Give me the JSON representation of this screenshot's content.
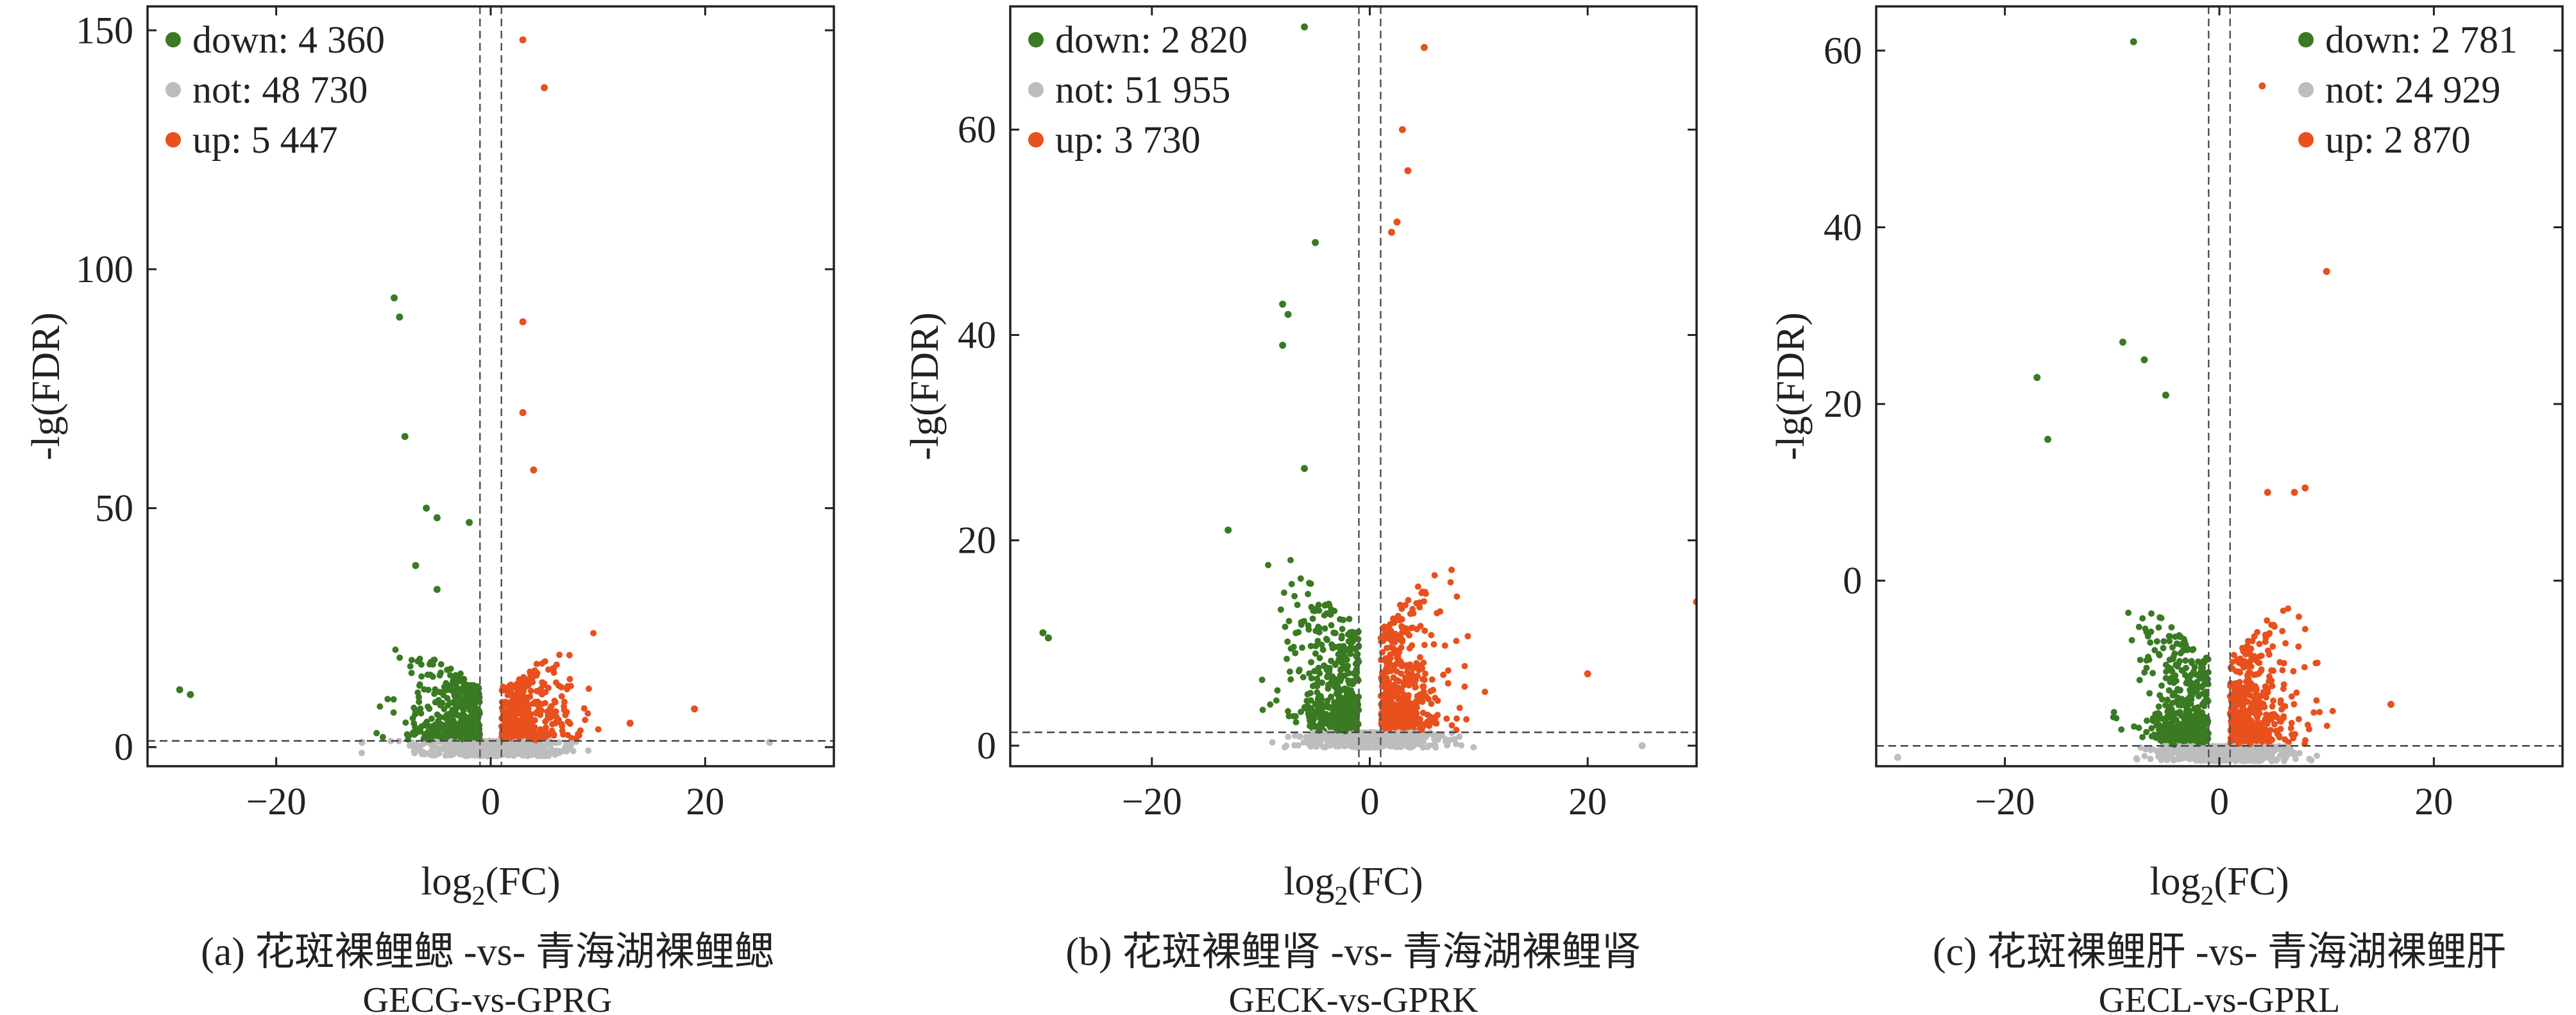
{
  "colors": {
    "down": "#3a7a22",
    "not": "#bdbdbd",
    "up": "#e8501d",
    "axis": "#222222"
  },
  "chart_data": [
    {
      "type": "scatter",
      "xlabel_main": "log",
      "xlabel_sub": "2",
      "xlabel_tail": "(FC)",
      "ylabel": "-lg(FDR)",
      "xlim": [
        -32,
        32
      ],
      "ylim": [
        -4,
        155
      ],
      "xticks": [
        -20,
        0,
        20
      ],
      "yticks": [
        0,
        50,
        100,
        150
      ],
      "thresholds": {
        "x": [
          -1,
          1
        ],
        "y": 1.3
      },
      "legend_position": "top-left",
      "legend": [
        {
          "group": "down",
          "label": "down: 4 360"
        },
        {
          "group": "not",
          "label": "not: 48 730"
        },
        {
          "group": "up",
          "label": "up: 5 447"
        }
      ],
      "highlights": [
        [
          -29,
          12,
          "down"
        ],
        [
          -28,
          11,
          "down"
        ],
        [
          -9,
          94,
          "down"
        ],
        [
          -8.5,
          90,
          "down"
        ],
        [
          -8,
          65,
          "down"
        ],
        [
          -6,
          50,
          "down"
        ],
        [
          -5,
          48,
          "down"
        ],
        [
          -2,
          47,
          "down"
        ],
        [
          -7,
          38,
          "down"
        ],
        [
          -5,
          33,
          "down"
        ],
        [
          3,
          148,
          "up"
        ],
        [
          5,
          138,
          "up"
        ],
        [
          3,
          89,
          "up"
        ],
        [
          3,
          70,
          "up"
        ],
        [
          4,
          58,
          "up"
        ],
        [
          19,
          8,
          "up"
        ],
        [
          13,
          5,
          "up"
        ],
        [
          26,
          1,
          "not"
        ],
        [
          -12,
          1,
          "not"
        ]
      ],
      "caption_label": "(a) 花斑裸鲤鳃 -vs- 青海湖裸鲤鳃",
      "caption_sub": "GECG-vs-GPRG"
    },
    {
      "type": "scatter",
      "xlabel_main": "log",
      "xlabel_sub": "2",
      "xlabel_tail": "(FC)",
      "ylabel": "-lg(FDR)",
      "xlim": [
        -33,
        30
      ],
      "ylim": [
        -2,
        72
      ],
      "xticks": [
        -20,
        0,
        20
      ],
      "yticks": [
        0,
        20,
        40,
        60
      ],
      "thresholds": {
        "x": [
          -1,
          1
        ],
        "y": 1.3
      },
      "legend_position": "top-left",
      "legend": [
        {
          "group": "down",
          "label": "down: 2 820"
        },
        {
          "group": "not",
          "label": "not: 51 955"
        },
        {
          "group": "up",
          "label": "up: 3 730"
        }
      ],
      "highlights": [
        [
          -30,
          11,
          "down"
        ],
        [
          -29.5,
          10.5,
          "down"
        ],
        [
          -6,
          70,
          "down"
        ],
        [
          -5,
          49,
          "down"
        ],
        [
          -8,
          43,
          "down"
        ],
        [
          -7.5,
          42,
          "down"
        ],
        [
          -8,
          39,
          "down"
        ],
        [
          -13,
          21,
          "down"
        ],
        [
          -6,
          27,
          "down"
        ],
        [
          5,
          68,
          "up"
        ],
        [
          3,
          60,
          "up"
        ],
        [
          3.5,
          56,
          "up"
        ],
        [
          2.5,
          51,
          "up"
        ],
        [
          2,
          50,
          "up"
        ],
        [
          30,
          14,
          "up"
        ],
        [
          20,
          7,
          "up"
        ],
        [
          25,
          0,
          "not"
        ]
      ],
      "caption_label": "(b) 花斑裸鲤肾 -vs- 青海湖裸鲤肾",
      "caption_sub": "GECK-vs-GPRK"
    },
    {
      "type": "scatter",
      "xlabel_main": "log",
      "xlabel_sub": "2",
      "xlabel_tail": "(FC)",
      "ylabel": "-lg(FDR)",
      "xlim": [
        -32,
        32
      ],
      "ylim": [
        -21,
        65
      ],
      "xticks": [
        -20,
        0,
        20
      ],
      "yticks": [
        0,
        20,
        40,
        60
      ],
      "thresholds": {
        "x": [
          -1,
          1
        ],
        "y": -18.7
      },
      "legend_position": "top-right",
      "legend": [
        {
          "group": "down",
          "label": "down: 2 781"
        },
        {
          "group": "not",
          "label": "not: 24 929"
        },
        {
          "group": "up",
          "label": "up: 2 870"
        }
      ],
      "highlights": [
        [
          -8,
          61,
          "down"
        ],
        [
          -9,
          27,
          "down"
        ],
        [
          -17,
          23,
          "down"
        ],
        [
          -7,
          25,
          "down"
        ],
        [
          -5,
          21,
          "down"
        ],
        [
          -16,
          16,
          "down"
        ],
        [
          -30,
          -20,
          "not"
        ],
        [
          4,
          56,
          "up"
        ],
        [
          10,
          35,
          "up"
        ],
        [
          8,
          10.5,
          "up"
        ],
        [
          7,
          10,
          "up"
        ],
        [
          4.5,
          10,
          "up"
        ],
        [
          16,
          -14,
          "up"
        ]
      ],
      "caption_label": "(c) 花斑裸鲤肝 -vs- 青海湖裸鲤肝",
      "caption_sub": "GECL-vs-GPRL"
    }
  ]
}
